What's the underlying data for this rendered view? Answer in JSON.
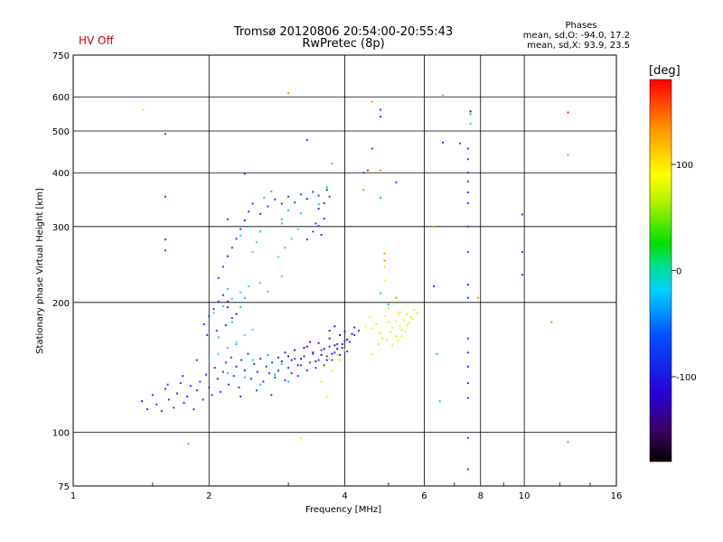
{
  "header": {
    "status": "HV Off",
    "title_line1": "Tromsø 20120806 20:54:00-20:55:43",
    "title_line2": "RwPretec (8p)",
    "phase_title": "Phases",
    "phase_o": "mean, sd,O: -94.0, 17.2",
    "phase_x": "mean, sd,X:  93.9, 23.5"
  },
  "chart_data": {
    "type": "scatter",
    "title": "Tromsø 20120806 20:54:00-20:55:43",
    "subtitle": "RwPretec (8p)",
    "xlabel": "Frequency [MHz]",
    "ylabel": "Stationary phase Virtual Height [km]",
    "x_scale": "log",
    "y_scale": "log",
    "xlim": [
      1,
      16
    ],
    "ylim": [
      75,
      750
    ],
    "x_ticks": [
      1,
      2,
      4,
      6,
      8,
      10,
      16
    ],
    "x_tick_labels": [
      "1",
      "2",
      "4",
      "6",
      "8",
      "10",
      "16"
    ],
    "y_ticks": [
      75,
      100,
      200,
      300,
      400,
      500,
      600,
      750
    ],
    "y_tick_labels": [
      "75",
      "100",
      "200",
      "300",
      "400",
      "500",
      "600",
      "750"
    ],
    "grid": true,
    "colorbar": {
      "label": "[deg]",
      "range": [
        -180,
        180
      ],
      "ticks": [
        100,
        0,
        -100
      ],
      "tick_labels": [
        "100",
        "0",
        "-100"
      ]
    },
    "series": [
      {
        "color": "#1e3cff",
        "points": [
          [
            1.42,
            118
          ],
          [
            1.46,
            113
          ],
          [
            1.5,
            122
          ],
          [
            1.53,
            116
          ],
          [
            1.57,
            112
          ],
          [
            1.6,
            126
          ],
          [
            1.63,
            119
          ],
          [
            1.67,
            114
          ],
          [
            1.7,
            123
          ],
          [
            1.73,
            130
          ],
          [
            1.76,
            117
          ],
          [
            1.79,
            121
          ],
          [
            1.82,
            128
          ],
          [
            1.85,
            113
          ],
          [
            1.88,
            125
          ],
          [
            1.91,
            131
          ],
          [
            1.94,
            119
          ],
          [
            1.97,
            136
          ],
          [
            2.0,
            127
          ],
          [
            2.03,
            122
          ],
          [
            2.06,
            141
          ],
          [
            2.09,
            133
          ],
          [
            2.12,
            124
          ],
          [
            2.15,
            138
          ],
          [
            2.18,
            145
          ],
          [
            2.21,
            129
          ],
          [
            2.24,
            149
          ],
          [
            2.27,
            135
          ],
          [
            2.3,
            142
          ],
          [
            2.33,
            127
          ],
          [
            2.36,
            147
          ],
          [
            2.4,
            139
          ],
          [
            2.44,
            152
          ],
          [
            2.48,
            133
          ],
          [
            2.52,
            144
          ],
          [
            2.56,
            138
          ],
          [
            2.6,
            148
          ],
          [
            2.64,
            131
          ],
          [
            2.68,
            142
          ],
          [
            2.72,
            137
          ],
          [
            2.76,
            145
          ],
          [
            2.8,
            134
          ],
          [
            2.85,
            139
          ],
          [
            2.9,
            146
          ],
          [
            2.95,
            132
          ],
          [
            3.0,
            141
          ],
          [
            3.05,
            137
          ],
          [
            3.1,
            148
          ],
          [
            3.15,
            135
          ],
          [
            3.2,
            143
          ],
          [
            3.25,
            150
          ],
          [
            3.3,
            139
          ],
          [
            3.35,
            145
          ],
          [
            3.4,
            152
          ],
          [
            3.45,
            141
          ],
          [
            3.5,
            147
          ],
          [
            3.55,
            155
          ],
          [
            3.6,
            143
          ],
          [
            3.65,
            150
          ],
          [
            3.7,
            158
          ],
          [
            3.75,
            147
          ],
          [
            3.8,
            153
          ],
          [
            3.85,
            160
          ],
          [
            3.9,
            151
          ],
          [
            3.95,
            157
          ],
          [
            4.0,
            163
          ],
          [
            4.05,
            154
          ],
          [
            4.1,
            162
          ],
          [
            4.2,
            168
          ],
          [
            4.3,
            172
          ],
          [
            1.95,
            178
          ],
          [
            2.0,
            186
          ],
          [
            2.05,
            193
          ],
          [
            2.1,
            201
          ],
          [
            2.15,
            208
          ],
          [
            2.2,
            195
          ],
          [
            2.25,
            184
          ],
          [
            1.98,
            168
          ],
          [
            2.08,
            172
          ],
          [
            2.18,
            177
          ],
          [
            2.1,
            228
          ],
          [
            2.15,
            242
          ],
          [
            2.2,
            256
          ],
          [
            2.25,
            268
          ],
          [
            2.3,
            281
          ],
          [
            2.35,
            296
          ],
          [
            2.4,
            310
          ],
          [
            2.45,
            325
          ],
          [
            2.5,
            339
          ],
          [
            2.2,
            312
          ],
          [
            2.6,
            321
          ],
          [
            2.7,
            334
          ],
          [
            2.8,
            347
          ],
          [
            2.9,
            339
          ],
          [
            3.0,
            352
          ],
          [
            3.1,
            341
          ],
          [
            3.2,
            356
          ],
          [
            3.3,
            348
          ],
          [
            3.4,
            361
          ],
          [
            3.5,
            354
          ],
          [
            3.3,
            280
          ],
          [
            3.4,
            292
          ],
          [
            3.5,
            301
          ],
          [
            3.6,
            313
          ],
          [
            3.55,
            287
          ],
          [
            3.45,
            305
          ],
          [
            3.6,
            340
          ],
          [
            3.7,
            352
          ],
          [
            3.5,
            330
          ],
          [
            3.65,
            365
          ],
          [
            2.4,
            398
          ],
          [
            4.4,
            400
          ],
          [
            4.6,
            455
          ],
          [
            4.8,
            540
          ],
          [
            4.8,
            560
          ],
          [
            5.2,
            380
          ],
          [
            7.5,
            455
          ],
          [
            7.5,
            430
          ],
          [
            7.5,
            400
          ],
          [
            7.5,
            382
          ],
          [
            7.5,
            360
          ],
          [
            7.5,
            340
          ],
          [
            7.5,
            300
          ],
          [
            7.5,
            262
          ],
          [
            7.5,
            220
          ],
          [
            7.5,
            205
          ],
          [
            7.5,
            165
          ],
          [
            7.5,
            153
          ],
          [
            7.5,
            142
          ],
          [
            7.5,
            130
          ],
          [
            7.5,
            120
          ],
          [
            7.5,
            97
          ],
          [
            7.5,
            82
          ],
          [
            9.9,
            320
          ],
          [
            9.9,
            262
          ],
          [
            9.9,
            232
          ],
          [
            6.3,
            218
          ],
          [
            6.6,
            470
          ],
          [
            7.2,
            468
          ],
          [
            1.6,
            352
          ],
          [
            1.6,
            280
          ],
          [
            1.6,
            264
          ],
          [
            1.6,
            492
          ],
          [
            3.3,
            477
          ],
          [
            1.88,
            147
          ],
          [
            1.75,
            135
          ],
          [
            1.62,
            129
          ],
          [
            2.35,
            121
          ],
          [
            2.55,
            125
          ],
          [
            2.75,
            122
          ]
        ]
      },
      {
        "color": "#5a00c8",
        "points": [
          [
            3.0,
            150
          ],
          [
            3.1,
            155
          ],
          [
            3.2,
            148
          ],
          [
            3.3,
            158
          ],
          [
            3.4,
            153
          ],
          [
            3.5,
            161
          ],
          [
            3.6,
            156
          ],
          [
            3.7,
            165
          ],
          [
            3.8,
            159
          ],
          [
            3.9,
            168
          ],
          [
            3.45,
            146
          ],
          [
            3.55,
            151
          ],
          [
            3.65,
            147
          ],
          [
            3.75,
            152
          ],
          [
            3.85,
            156
          ],
          [
            3.95,
            160
          ],
          [
            4.05,
            164
          ],
          [
            4.15,
            169
          ],
          [
            3.35,
            162
          ],
          [
            3.25,
            157
          ],
          [
            3.15,
            143
          ],
          [
            3.05,
            147
          ],
          [
            2.95,
            153
          ],
          [
            2.85,
            149
          ],
          [
            3.7,
            172
          ],
          [
            3.8,
            176
          ],
          [
            4.0,
            171
          ],
          [
            4.2,
            175
          ],
          [
            2.3,
            188
          ],
          [
            2.2,
            201
          ]
        ]
      },
      {
        "color": "#00c8e6",
        "points": [
          [
            2.2,
            137
          ],
          [
            2.4,
            134
          ],
          [
            2.6,
            129
          ],
          [
            2.8,
            136
          ],
          [
            3.0,
            131
          ],
          [
            2.5,
            147
          ],
          [
            2.7,
            151
          ],
          [
            2.9,
            144
          ],
          [
            2.3,
            160
          ],
          [
            2.1,
            166
          ],
          [
            2.25,
            180
          ],
          [
            2.35,
            195
          ],
          [
            2.4,
            205
          ],
          [
            2.2,
            215
          ],
          [
            2.6,
            292
          ],
          [
            2.9,
            305
          ],
          [
            3.2,
            322
          ],
          [
            3.5,
            338
          ],
          [
            6.4,
            152
          ],
          [
            6.5,
            118
          ],
          [
            4.8,
            210
          ],
          [
            5.0,
            198
          ],
          [
            7.6,
            520
          ],
          [
            7.6,
            547
          ],
          [
            2.9,
            312
          ],
          [
            3.0,
            327
          ],
          [
            2.35,
            286
          ],
          [
            2.45,
            300
          ],
          [
            2.65,
            350
          ],
          [
            2.75,
            362
          ]
        ]
      },
      {
        "color": "#3cc8ff",
        "points": [
          [
            2.0,
            148
          ],
          [
            2.1,
            152
          ],
          [
            2.2,
            157
          ],
          [
            2.3,
            162
          ],
          [
            2.4,
            168
          ],
          [
            2.5,
            173
          ],
          [
            2.05,
            189
          ],
          [
            2.15,
            196
          ],
          [
            2.25,
            204
          ],
          [
            2.35,
            211
          ],
          [
            2.45,
            218
          ],
          [
            2.6,
            222
          ],
          [
            2.7,
            212
          ],
          [
            2.9,
            230
          ],
          [
            2.85,
            255
          ],
          [
            2.95,
            268
          ],
          [
            3.05,
            281
          ],
          [
            3.15,
            296
          ],
          [
            2.5,
            262
          ],
          [
            2.55,
            276
          ]
        ]
      },
      {
        "color": "#f0f000",
        "points": [
          [
            4.9,
            186
          ],
          [
            5.0,
            180
          ],
          [
            5.1,
            175
          ],
          [
            5.2,
            181
          ],
          [
            5.3,
            176
          ],
          [
            5.4,
            182
          ],
          [
            5.5,
            188
          ],
          [
            5.6,
            185
          ],
          [
            5.7,
            192
          ],
          [
            5.8,
            189
          ],
          [
            5.55,
            179
          ],
          [
            5.45,
            171
          ],
          [
            5.35,
            167
          ],
          [
            5.25,
            163
          ],
          [
            4.8,
            170
          ],
          [
            4.7,
            178
          ],
          [
            4.6,
            174
          ],
          [
            3.7,
            148
          ],
          [
            3.6,
            142
          ],
          [
            3.85,
            151
          ],
          [
            5.0,
            194
          ],
          [
            5.15,
            199
          ],
          [
            5.3,
            190
          ],
          [
            4.95,
            163
          ],
          [
            5.1,
            159
          ],
          [
            1.43,
            560
          ],
          [
            3.2,
            97
          ],
          [
            4.9,
            242
          ],
          [
            4.9,
            225
          ],
          [
            5.2,
            205
          ]
        ]
      },
      {
        "color": "#c8ff00",
        "points": [
          [
            4.85,
            165
          ],
          [
            5.05,
            171
          ],
          [
            5.2,
            167
          ],
          [
            5.35,
            173
          ],
          [
            5.5,
            177
          ],
          [
            5.65,
            183
          ],
          [
            3.9,
            147
          ],
          [
            3.75,
            139
          ],
          [
            4.0,
            155
          ],
          [
            3.65,
            121
          ],
          [
            4.55,
            185
          ],
          [
            4.45,
            176
          ],
          [
            4.75,
            160
          ],
          [
            4.6,
            152
          ],
          [
            3.55,
            131
          ],
          [
            5.25,
            188
          ]
        ]
      },
      {
        "color": "#00d800",
        "points": [
          [
            4.8,
            350
          ],
          [
            3.65,
            370
          ]
        ]
      },
      {
        "color": "#ff8c00",
        "points": [
          [
            4.6,
            585
          ],
          [
            4.8,
            405
          ],
          [
            4.9,
            260
          ],
          [
            4.9,
            250
          ],
          [
            5.2,
            205
          ],
          [
            6.3,
            300
          ],
          [
            6.6,
            605
          ],
          [
            7.9,
            205
          ],
          [
            12.5,
            440
          ],
          [
            11.5,
            180
          ],
          [
            1.8,
            94
          ],
          [
            3.0,
            612
          ],
          [
            4.4,
            365
          ],
          [
            3.75,
            420
          ],
          [
            12.5,
            95
          ]
        ]
      },
      {
        "color": "#ff2000",
        "points": [
          [
            12.5,
            552
          ],
          [
            4.5,
            405
          ]
        ]
      },
      {
        "color": "#800000",
        "points": [
          [
            7.6,
            555
          ]
        ]
      }
    ]
  }
}
